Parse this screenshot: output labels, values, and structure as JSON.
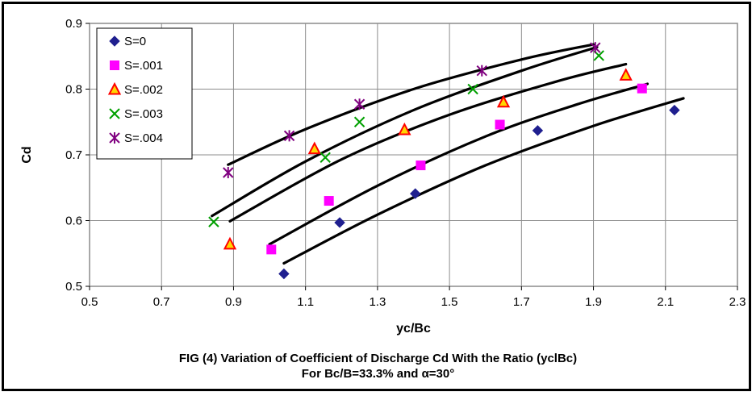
{
  "chart_data": {
    "type": "scatter",
    "xlabel": "yc/Bc",
    "ylabel": "Cd",
    "xlim": [
      0.5,
      2.3
    ],
    "ylim": [
      0.5,
      0.9
    ],
    "xticks": [
      "0.5",
      "0.7",
      "0.9",
      "1.1",
      "1.3",
      "1.5",
      "1.7",
      "1.9",
      "2.1",
      "2.3"
    ],
    "yticks": [
      "0.5",
      "0.6",
      "0.7",
      "0.8",
      "0.9"
    ],
    "grid": true,
    "legend_position": "top-left",
    "caption_lines": [
      "FIG (4) Variation of Coefficient of Discharge Cd With the Ratio (yclBc)",
      "For Bc/B=33.3% and α=30°"
    ],
    "series": [
      {
        "name": "S=0",
        "marker": "diamond",
        "color": "#1f1f8f",
        "points": [
          [
            1.04,
            0.519
          ],
          [
            1.195,
            0.597
          ],
          [
            1.405,
            0.641
          ],
          [
            1.745,
            0.737
          ],
          [
            2.125,
            0.768
          ]
        ],
        "fit": [
          [
            1.04,
            0.535
          ],
          [
            1.3,
            0.609
          ],
          [
            1.6,
            0.684
          ],
          [
            1.9,
            0.744
          ],
          [
            2.15,
            0.786
          ]
        ]
      },
      {
        "name": "S=.001",
        "marker": "square",
        "color": "#ff00ff",
        "points": [
          [
            1.005,
            0.556
          ],
          [
            1.165,
            0.63
          ],
          [
            1.42,
            0.684
          ],
          [
            1.64,
            0.746
          ],
          [
            2.035,
            0.801
          ]
        ],
        "fit": [
          [
            1.0,
            0.564
          ],
          [
            1.3,
            0.653
          ],
          [
            1.6,
            0.728
          ],
          [
            1.85,
            0.776
          ],
          [
            2.05,
            0.808
          ]
        ]
      },
      {
        "name": "S=.002",
        "marker": "triangle",
        "color": "#ff0000",
        "fill": "#ffd700",
        "points": [
          [
            0.89,
            0.564
          ],
          [
            1.125,
            0.709
          ],
          [
            1.375,
            0.738
          ],
          [
            1.65,
            0.78
          ],
          [
            1.99,
            0.821
          ]
        ],
        "fit": [
          [
            0.89,
            0.599
          ],
          [
            1.2,
            0.693
          ],
          [
            1.5,
            0.761
          ],
          [
            1.8,
            0.812
          ],
          [
            1.99,
            0.838
          ]
        ]
      },
      {
        "name": "S=.003",
        "marker": "x",
        "color": "#00a000",
        "points": [
          [
            0.845,
            0.598
          ],
          [
            1.155,
            0.696
          ],
          [
            1.25,
            0.75
          ],
          [
            1.565,
            0.8
          ],
          [
            1.915,
            0.851
          ]
        ],
        "fit": [
          [
            0.84,
            0.607
          ],
          [
            1.1,
            0.69
          ],
          [
            1.4,
            0.768
          ],
          [
            1.7,
            0.828
          ],
          [
            1.91,
            0.864
          ]
        ]
      },
      {
        "name": "S=.004",
        "marker": "asterisk",
        "color": "#800080",
        "points": [
          [
            0.885,
            0.673
          ],
          [
            1.055,
            0.729
          ],
          [
            1.25,
            0.777
          ],
          [
            1.59,
            0.828
          ],
          [
            1.905,
            0.863
          ]
        ],
        "fit": [
          [
            0.885,
            0.685
          ],
          [
            1.1,
            0.739
          ],
          [
            1.4,
            0.8
          ],
          [
            1.7,
            0.845
          ],
          [
            1.9,
            0.868
          ]
        ]
      }
    ]
  }
}
